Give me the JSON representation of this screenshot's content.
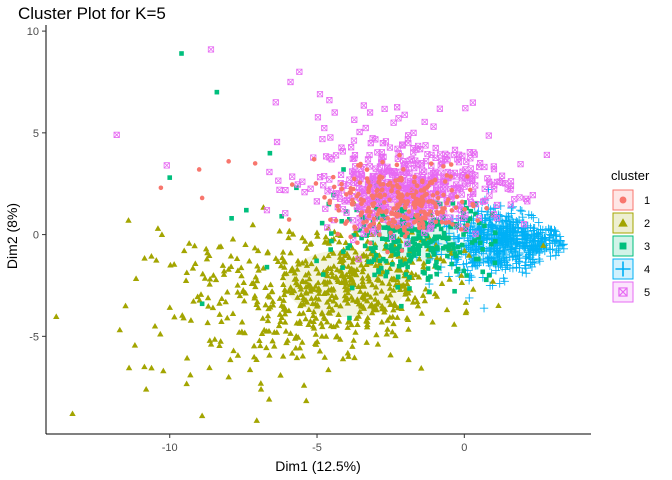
{
  "chart_data": {
    "type": "scatter",
    "title": "Cluster Plot for K=5",
    "xlabel": "Dim1 (12.5%)",
    "ylabel": "Dim2 (8%)",
    "xlim": [
      -14.2,
      4.3
    ],
    "ylim": [
      -9.8,
      10.3
    ],
    "x_ticks": [
      -10,
      -5,
      0
    ],
    "x_tick_labels": [
      "-10",
      "-5",
      "0"
    ],
    "y_ticks": [
      10,
      5,
      0,
      -5
    ],
    "y_tick_labels": [
      "10",
      "5",
      "0",
      "-5"
    ],
    "grid": false,
    "legend": {
      "title": "cluster",
      "position": "right"
    },
    "series": [
      {
        "name": "1",
        "color": "#F8766D",
        "shape": "circle",
        "center": [
          -2.2,
          1.5
        ],
        "spread": [
          1.2,
          0.8
        ],
        "count": 260,
        "sample_points": [
          [
            -10.3,
            2.3
          ],
          [
            -9.0,
            3.2
          ],
          [
            -8.9,
            1.8
          ],
          [
            -8.0,
            3.6
          ],
          [
            -7.1,
            3.5
          ],
          [
            -5.1,
            3.7
          ],
          [
            -4.3,
            1.4
          ],
          [
            -3.6,
            3.4
          ],
          [
            -3.2,
            2.4
          ],
          [
            -2.6,
            0.8
          ],
          [
            -1.7,
            0.6
          ],
          [
            -1.1,
            2.6
          ],
          [
            -0.4,
            0.5
          ],
          [
            0.2,
            2.2
          ],
          [
            -2.2,
            3.9
          ]
        ]
      },
      {
        "name": "2",
        "color": "#A3A500",
        "shape": "triangle",
        "center": [
          -4.0,
          -2.4
        ],
        "spread": [
          1.9,
          1.5
        ],
        "count": 650,
        "sample_points": [
          [
            -13.3,
            -8.8
          ],
          [
            -11.5,
            -3.5
          ],
          [
            -11.4,
            0.7
          ],
          [
            -10.8,
            -7.6
          ],
          [
            -10.5,
            -4.5
          ],
          [
            -10.4,
            0.3
          ],
          [
            -9.3,
            -6.9
          ],
          [
            -8.9,
            -8.9
          ],
          [
            -8.0,
            -7.0
          ],
          [
            -6.9,
            -7.6
          ],
          [
            -6.0,
            -5.2
          ],
          [
            -5.1,
            -4.6
          ],
          [
            -3.8,
            -5.5
          ],
          [
            -2.8,
            -4.3
          ],
          [
            -1.6,
            -3.3
          ],
          [
            -0.5,
            -2.2
          ],
          [
            -3.5,
            -1.5
          ],
          [
            -7.5,
            -2.8
          ],
          [
            -5.5,
            -1.4
          ],
          [
            -2.0,
            -1.2
          ]
        ]
      },
      {
        "name": "3",
        "color": "#00BF7D",
        "shape": "square",
        "center": [
          -1.7,
          -0.2
        ],
        "spread": [
          1.3,
          1.0
        ],
        "count": 280,
        "sample_points": [
          [
            -9.6,
            8.9
          ],
          [
            -8.4,
            7.0
          ],
          [
            -10.0,
            2.8
          ],
          [
            -8.9,
            -3.4
          ],
          [
            -7.9,
            0.8
          ],
          [
            -7.4,
            1.2
          ],
          [
            -6.6,
            4.0
          ],
          [
            -6.2,
            0.9
          ],
          [
            -5.7,
            2.3
          ],
          [
            -4.6,
            1.5
          ],
          [
            -3.9,
            -4.1
          ],
          [
            -3.1,
            0.6
          ],
          [
            -2.3,
            -0.7
          ],
          [
            -1.5,
            0.9
          ],
          [
            -0.5,
            -0.5
          ],
          [
            0.4,
            -1.2
          ],
          [
            -4.1,
            3.2
          ],
          [
            -6.7,
            -1.6
          ]
        ]
      },
      {
        "name": "4",
        "color": "#00B0F6",
        "shape": "plus",
        "center": [
          1.3,
          -0.4
        ],
        "spread": [
          1.1,
          0.8
        ],
        "count": 620,
        "sample_points": [
          [
            -0.6,
            0.4
          ],
          [
            -0.2,
            -1.1
          ],
          [
            0.5,
            0.3
          ],
          [
            1.0,
            1.3
          ],
          [
            1.4,
            -0.5
          ],
          [
            1.8,
            0.6
          ],
          [
            2.2,
            -1.0
          ],
          [
            2.6,
            0.1
          ],
          [
            3.0,
            -0.3
          ],
          [
            3.2,
            -0.7
          ],
          [
            2.1,
            -1.9
          ],
          [
            1.2,
            -2.4
          ],
          [
            0.2,
            -2.0
          ],
          [
            0.7,
            1.7
          ],
          [
            1.9,
            1.2
          ]
        ]
      },
      {
        "name": "5",
        "color": "#E76BF3",
        "shape": "boxed-cross",
        "center": [
          -1.8,
          2.2
        ],
        "spread": [
          1.6,
          1.0
        ],
        "count": 520,
        "sample_points": [
          [
            -11.8,
            4.9
          ],
          [
            -10.1,
            3.4
          ],
          [
            -8.6,
            9.1
          ],
          [
            -6.4,
            6.5
          ],
          [
            -5.9,
            7.5
          ],
          [
            -5.6,
            8.0
          ],
          [
            -4.9,
            6.9
          ],
          [
            -4.4,
            6.0
          ],
          [
            -3.2,
            6.0
          ],
          [
            -2.4,
            5.5
          ],
          [
            -1.5,
            4.2
          ],
          [
            -0.8,
            3.4
          ],
          [
            0.3,
            2.0
          ],
          [
            1.0,
            1.0
          ],
          [
            -5.5,
            2.6
          ],
          [
            -6.7,
            1.2
          ],
          [
            -3.9,
            2.7
          ]
        ]
      }
    ]
  }
}
